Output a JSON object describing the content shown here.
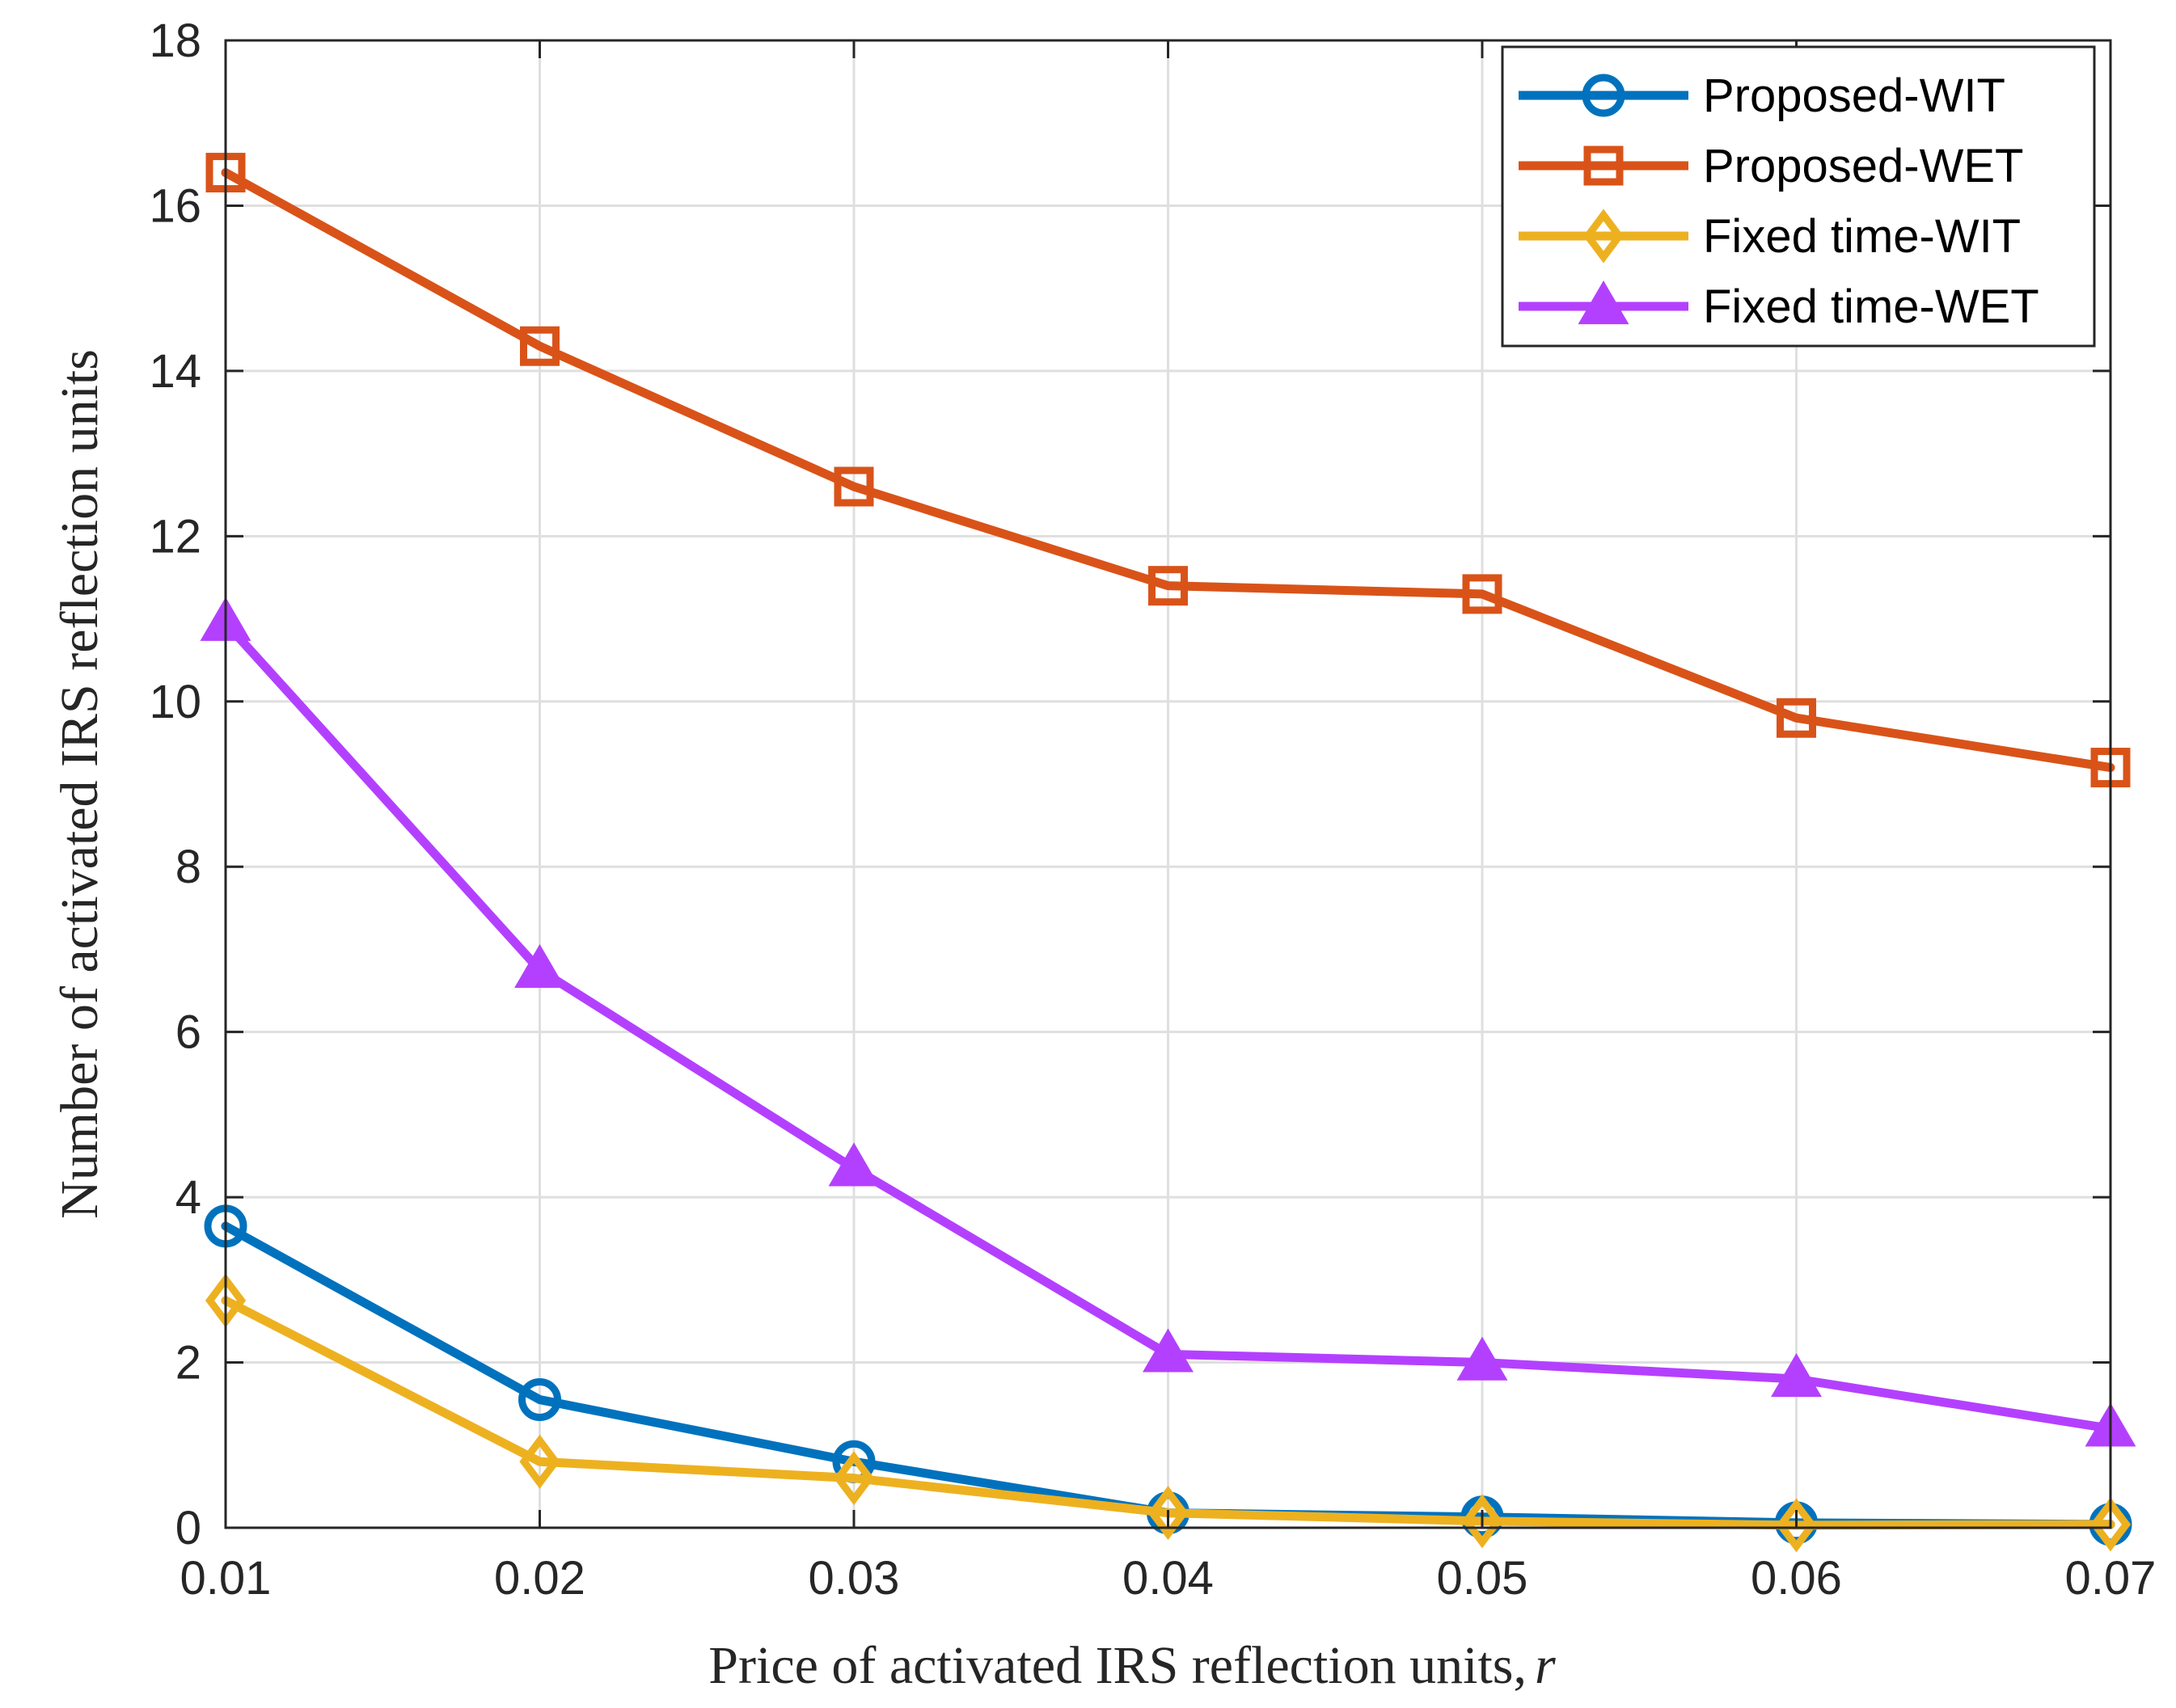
{
  "chart_data": {
    "type": "line",
    "title": "",
    "xlabel_text": "Price of activated IRS reflection units,",
    "xlabel_symbol": "r",
    "ylabel": "Number of activated IRS reflection units",
    "x": [
      0.01,
      0.02,
      0.03,
      0.04,
      0.05,
      0.06,
      0.07
    ],
    "x_tick_labels": [
      "0.01",
      "0.02",
      "0.03",
      "0.04",
      "0.05",
      "0.06",
      "0.07"
    ],
    "y_ticks": [
      0,
      2,
      4,
      6,
      8,
      10,
      12,
      14,
      16,
      18
    ],
    "xlim": [
      0.01,
      0.07
    ],
    "ylim": [
      0,
      18
    ],
    "grid": true,
    "legend_position": "top-right",
    "series": [
      {
        "name": "Proposed-WIT",
        "marker": "circle",
        "color": "#0072BD",
        "values": [
          3.65,
          1.55,
          0.8,
          0.18,
          0.13,
          0.06,
          0.04
        ]
      },
      {
        "name": "Proposed-WET",
        "marker": "square",
        "color": "#D95319",
        "values": [
          16.4,
          14.3,
          12.6,
          11.4,
          11.3,
          9.8,
          9.2
        ]
      },
      {
        "name": "Fixed time-WIT",
        "marker": "diamond",
        "color": "#EDB120",
        "values": [
          2.75,
          0.8,
          0.6,
          0.18,
          0.08,
          0.03,
          0.04
        ]
      },
      {
        "name": "Fixed time-WET",
        "marker": "triangle",
        "color": "#B440FF",
        "values": [
          10.95,
          6.75,
          4.35,
          2.1,
          2.0,
          1.8,
          1.2
        ]
      }
    ]
  }
}
